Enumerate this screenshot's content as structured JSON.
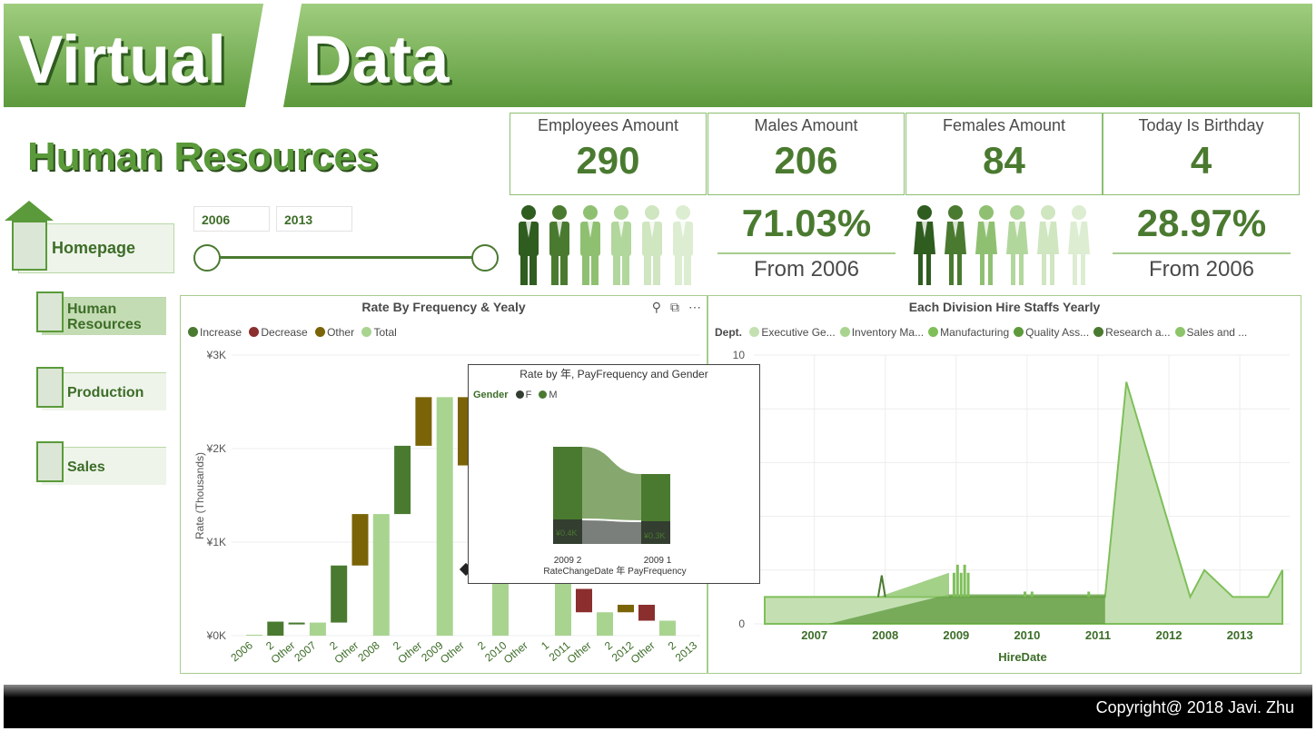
{
  "banner": {
    "word1": "Virtual",
    "word2": "Data"
  },
  "page_title": "Human Resources",
  "kpis": [
    {
      "label": "Employees Amount",
      "value": "290"
    },
    {
      "label": "Males Amount",
      "value": "206"
    },
    {
      "label": "Females Amount",
      "value": "84"
    },
    {
      "label": "Today Is Birthday",
      "value": "4"
    }
  ],
  "nav": {
    "home": "Homepage",
    "items": [
      {
        "label_line1": "Human",
        "label_line2": "Resources",
        "active": true
      },
      {
        "label_line1": "Production",
        "label_line2": "",
        "active": false
      },
      {
        "label_line1": "Sales",
        "label_line2": "",
        "active": false
      }
    ]
  },
  "slicer": {
    "start_year": "2006",
    "end_year": "2013"
  },
  "male_share": {
    "pct": "71.03%",
    "sub": "From 2006",
    "filled": 2,
    "total": 6
  },
  "female_share": {
    "pct": "28.97%",
    "sub": "From 2006",
    "filled": 2,
    "total": 6
  },
  "colors": {
    "increase": "#4a7a30",
    "decrease": "#8b2e2e",
    "other": "#7a6407",
    "total": "#a8d490",
    "female": "#333d30",
    "male": "#4a7a30"
  },
  "waterfall": {
    "title": "Rate By Frequency & Yealy",
    "legend": [
      "Increase",
      "Decrease",
      "Other",
      "Total"
    ],
    "ylabel": "Rate (Thousands)",
    "y_ticks": [
      "¥3K",
      "¥2K",
      "¥1K",
      "¥0K"
    ],
    "x_ticks": [
      "2006",
      "2",
      "Other",
      "2007",
      "2",
      "Other",
      "2008",
      "2",
      "Other",
      "2009",
      "Other",
      "2",
      "2010",
      "Other",
      "1",
      "2011",
      "Other",
      "2",
      "2012",
      "Other",
      "2",
      "2013"
    ],
    "icons": [
      "pin-icon",
      "focus-mode-icon",
      "more-options-icon"
    ]
  },
  "chart_data": [
    {
      "type": "bar",
      "title": "Rate By Frequency & Yealy",
      "ylabel": "Rate (Thousands)",
      "ylim": [
        0,
        3
      ],
      "units": "¥K",
      "bars": [
        {
          "kind": "total",
          "start": 0,
          "end": 0.01
        },
        {
          "kind": "increase",
          "start": 0,
          "end": 0.15
        },
        {
          "kind": "increase",
          "start": 0.12,
          "end": 0.14
        },
        {
          "kind": "total",
          "start": 0,
          "end": 0.14
        },
        {
          "kind": "increase",
          "start": 0.14,
          "end": 0.75
        },
        {
          "kind": "other",
          "start": 0.75,
          "end": 1.3
        },
        {
          "kind": "total",
          "start": 0,
          "end": 1.3
        },
        {
          "kind": "increase",
          "start": 1.3,
          "end": 2.03
        },
        {
          "kind": "other",
          "start": 2.03,
          "end": 2.55
        },
        {
          "kind": "total",
          "start": 0,
          "end": 2.55
        },
        {
          "kind": "other",
          "start": 1.82,
          "end": 2.55
        }
      ],
      "tail_bars": [
        {
          "kind": "total",
          "start": 0,
          "end": 0.6
        },
        {
          "kind": "decrease",
          "start": 0.25,
          "end": 0.5
        },
        {
          "kind": "total",
          "start": 0,
          "end": 0.25
        },
        {
          "kind": "other",
          "start": 0.25,
          "end": 0.33
        },
        {
          "kind": "decrease",
          "start": 0.16,
          "end": 0.33
        },
        {
          "kind": "total",
          "start": 0,
          "end": 0.16
        }
      ]
    },
    {
      "type": "area",
      "title": "Each Division Hire Staffs Yearly",
      "xlabel": "HireDate",
      "x_ticks": [
        "2007",
        "2008",
        "2009",
        "2010",
        "2011",
        "2012",
        "2013"
      ],
      "y_ticks": [
        "10",
        "0"
      ],
      "ylim": [
        0,
        10
      ],
      "legend_title": "Dept.",
      "series": [
        {
          "name": "Executive Ge...",
          "color": "#c4e0b2"
        },
        {
          "name": "Inventory Ma...",
          "color": "#a8d490"
        },
        {
          "name": "Manufacturing",
          "color": "#7fbf5a"
        },
        {
          "name": "Quality Ass...",
          "color": "#5e9a3c"
        },
        {
          "name": "Research a...",
          "color": "#4a7a30"
        },
        {
          "name": "Sales and ...",
          "color": "#8cc56a"
        }
      ],
      "main_series": {
        "x": [
          2006.3,
          2011.1,
          2011.4,
          2012.3,
          2012.5,
          2012.9,
          2013.4,
          2013.6
        ],
        "y": [
          1,
          1,
          9,
          1,
          2,
          1,
          1,
          2
        ]
      }
    }
  ],
  "tooltip": {
    "title": "Rate by 年, PayFrequency and Gender",
    "legend_title": "Gender",
    "legend": [
      "F",
      "M"
    ],
    "labels": [
      "¥0.4K",
      "¥0.3K"
    ],
    "x_labels": [
      "2009 2",
      "2009 1"
    ],
    "xlabel": "RateChangeDate 年 PayFrequency"
  },
  "area": {
    "title": "Each Division Hire Staffs Yearly",
    "legend_title": "Dept.",
    "xlabel": "HireDate"
  },
  "footer": "Copyright@ 2018 Javi. Zhu"
}
